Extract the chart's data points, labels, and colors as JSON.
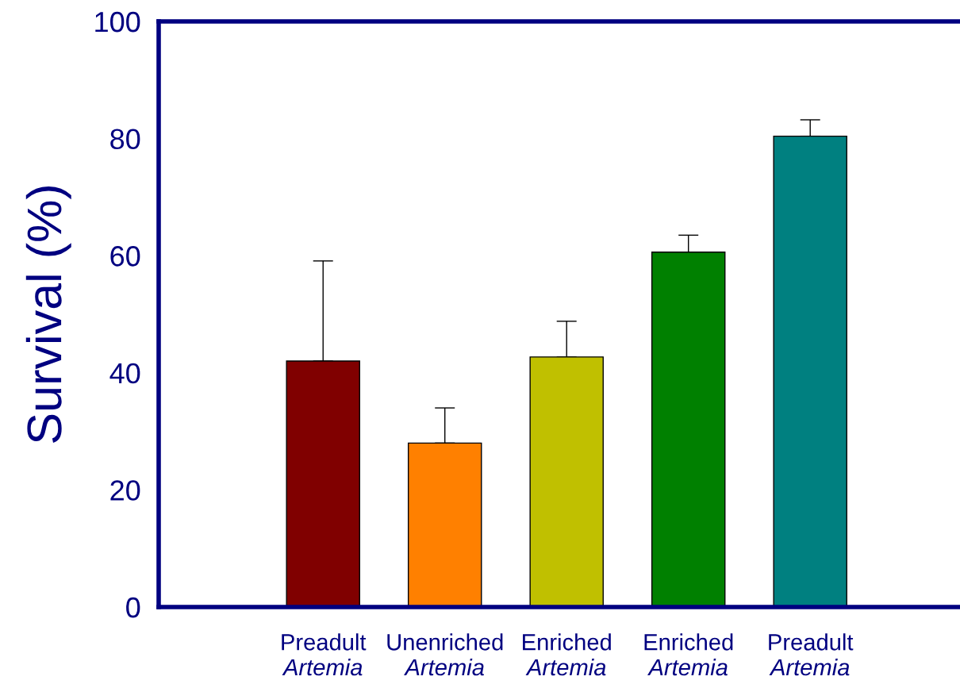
{
  "chart_data": {
    "type": "bar",
    "ylabel": "Survival (%)",
    "categories": [
      "Preadult\nArtemia",
      "Unenriched\nArtemia",
      "Enriched\nArtemia",
      "Enriched\nArtemia",
      "Preadult\nArtemia"
    ],
    "values": [
      42.0,
      28.0,
      42.7,
      60.6,
      80.4
    ],
    "colors": [
      "#800000",
      "#ff8000",
      "#c0c000",
      "#008000",
      "#008080"
    ],
    "errors": [
      [
        42.0,
        59.1
      ],
      [
        28.0,
        34.0
      ],
      [
        42.7,
        48.8
      ],
      [
        60.6,
        63.5
      ],
      [
        80.4,
        83.2
      ]
    ],
    "ylim": [
      0,
      100
    ],
    "yticks": [
      0,
      20,
      40,
      60,
      80,
      100
    ],
    "grid": false,
    "legend": false
  }
}
